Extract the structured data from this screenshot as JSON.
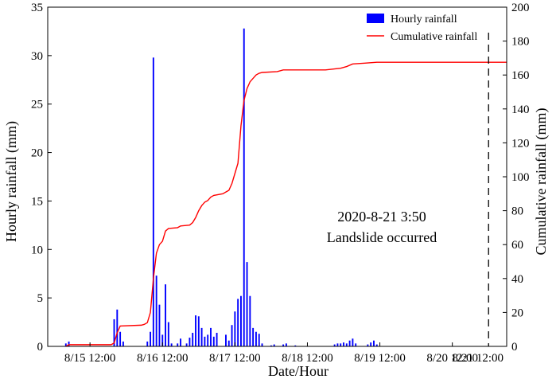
{
  "chart_data": {
    "type": "bar+line",
    "xlabel": "Date/Hour",
    "ylabel_left": "Hourly rainfall (mm)",
    "ylabel_right": "Cumulative rainfall (mm)",
    "ylim_left": [
      0,
      35
    ],
    "ylim_right": [
      0,
      200
    ],
    "yticks_left": [
      0,
      5,
      10,
      15,
      20,
      25,
      30,
      35
    ],
    "yticks_right": [
      0,
      20,
      40,
      60,
      80,
      100,
      120,
      140,
      160,
      180,
      200
    ],
    "x_unit": "hours since 8/15 00:00",
    "xlim": [
      -2,
      150
    ],
    "xticks": [
      {
        "x": 12,
        "label": "8/15 12:00"
      },
      {
        "x": 36,
        "label": "8/16 12:00"
      },
      {
        "x": 60,
        "label": "8/17 12:00"
      },
      {
        "x": 84,
        "label": "8/18 12:00"
      },
      {
        "x": 108,
        "label": "8/19 12:00"
      },
      {
        "x": 132,
        "label": "8/20 12:00"
      },
      {
        "x": 156,
        "label": "8/21 12:00"
      }
    ],
    "series": [
      {
        "name": "Hourly rainfall",
        "type": "bar",
        "color": "#0000ff",
        "points": [
          {
            "x": 4,
            "y": 0.3
          },
          {
            "x": 5,
            "y": 0.5
          },
          {
            "x": 20,
            "y": 2.8
          },
          {
            "x": 21,
            "y": 3.8
          },
          {
            "x": 22,
            "y": 1.5
          },
          {
            "x": 23,
            "y": 0.5
          },
          {
            "x": 31,
            "y": 0.5
          },
          {
            "x": 32,
            "y": 1.5
          },
          {
            "x": 33,
            "y": 29.8
          },
          {
            "x": 34,
            "y": 7.3
          },
          {
            "x": 35,
            "y": 4.3
          },
          {
            "x": 36,
            "y": 1.2
          },
          {
            "x": 37,
            "y": 6.4
          },
          {
            "x": 38,
            "y": 2.5
          },
          {
            "x": 39,
            "y": 0.3
          },
          {
            "x": 41,
            "y": 0.3
          },
          {
            "x": 42,
            "y": 0.8
          },
          {
            "x": 44,
            "y": 0.3
          },
          {
            "x": 45,
            "y": 0.9
          },
          {
            "x": 46,
            "y": 1.4
          },
          {
            "x": 47,
            "y": 3.2
          },
          {
            "x": 48,
            "y": 3.1
          },
          {
            "x": 49,
            "y": 1.9
          },
          {
            "x": 50,
            "y": 1.0
          },
          {
            "x": 51,
            "y": 1.2
          },
          {
            "x": 52,
            "y": 1.9
          },
          {
            "x": 53,
            "y": 1.0
          },
          {
            "x": 54,
            "y": 1.4
          },
          {
            "x": 57,
            "y": 1.2
          },
          {
            "x": 58,
            "y": 0.6
          },
          {
            "x": 59,
            "y": 2.2
          },
          {
            "x": 60,
            "y": 3.6
          },
          {
            "x": 61,
            "y": 4.9
          },
          {
            "x": 62,
            "y": 5.2
          },
          {
            "x": 63,
            "y": 32.8
          },
          {
            "x": 64,
            "y": 8.7
          },
          {
            "x": 65,
            "y": 5.2
          },
          {
            "x": 66,
            "y": 1.9
          },
          {
            "x": 67,
            "y": 1.5
          },
          {
            "x": 68,
            "y": 1.3
          },
          {
            "x": 69,
            "y": 0.3
          },
          {
            "x": 72,
            "y": 0.1
          },
          {
            "x": 73,
            "y": 0.2
          },
          {
            "x": 76,
            "y": 0.2
          },
          {
            "x": 77,
            "y": 0.3
          },
          {
            "x": 80,
            "y": 0.1
          },
          {
            "x": 93,
            "y": 0.2
          },
          {
            "x": 94,
            "y": 0.3
          },
          {
            "x": 95,
            "y": 0.3
          },
          {
            "x": 96,
            "y": 0.4
          },
          {
            "x": 97,
            "y": 0.3
          },
          {
            "x": 98,
            "y": 0.6
          },
          {
            "x": 99,
            "y": 0.8
          },
          {
            "x": 100,
            "y": 0.3
          },
          {
            "x": 104,
            "y": 0.2
          },
          {
            "x": 105,
            "y": 0.4
          },
          {
            "x": 106,
            "y": 0.6
          },
          {
            "x": 107,
            "y": 0.2
          }
        ]
      },
      {
        "name": "Cumulative rainfall",
        "type": "line",
        "color": "#ff0000",
        "points": [
          [
            4,
            0
          ],
          [
            5,
            1
          ],
          [
            19,
            1
          ],
          [
            20,
            2
          ],
          [
            21,
            8
          ],
          [
            22,
            12
          ],
          [
            29,
            12.5
          ],
          [
            30,
            13
          ],
          [
            31,
            14
          ],
          [
            32,
            20
          ],
          [
            33,
            40
          ],
          [
            34,
            55
          ],
          [
            35,
            60
          ],
          [
            36,
            62
          ],
          [
            37,
            68
          ],
          [
            38,
            69.5
          ],
          [
            41,
            70
          ],
          [
            42,
            71
          ],
          [
            45,
            71.5
          ],
          [
            46,
            73
          ],
          [
            47,
            76
          ],
          [
            48,
            80
          ],
          [
            49,
            83
          ],
          [
            50,
            85
          ],
          [
            51,
            86
          ],
          [
            52,
            88
          ],
          [
            53,
            89
          ],
          [
            56,
            90
          ],
          [
            57,
            91
          ],
          [
            58,
            92
          ],
          [
            59,
            96
          ],
          [
            60,
            102
          ],
          [
            61,
            108
          ],
          [
            62,
            130
          ],
          [
            63,
            145
          ],
          [
            64,
            152
          ],
          [
            65,
            156
          ],
          [
            66,
            158
          ],
          [
            67,
            160
          ],
          [
            68,
            161
          ],
          [
            69,
            161.5
          ],
          [
            74,
            162
          ],
          [
            76,
            163
          ],
          [
            80,
            163
          ],
          [
            90,
            163
          ],
          [
            95,
            164
          ],
          [
            97,
            165
          ],
          [
            99,
            166.5
          ],
          [
            103,
            167
          ],
          [
            107,
            167.5
          ],
          [
            150,
            167.5
          ]
        ]
      }
    ],
    "landslide_x": 144,
    "annotation_lines": [
      "2020-8-21 3:50",
      "Landslide occurred"
    ],
    "legend_position": "top-right"
  },
  "colors": {
    "bar": "#0000ff",
    "line": "#ff0000",
    "axis": "#000000"
  }
}
